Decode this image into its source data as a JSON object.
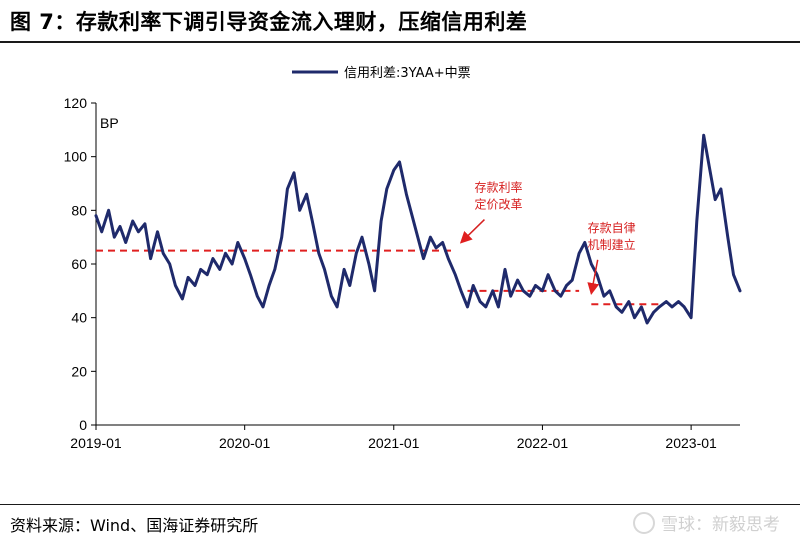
{
  "header": {
    "title": "图 7：存款利率下调引导资金流入理财，压缩信用利差"
  },
  "footer": {
    "source": "资料来源：Wind、国海证券研究所",
    "watermark": "雪球：新毅思考"
  },
  "chart_data": {
    "type": "line",
    "unit_label": "BP",
    "ylim": [
      0,
      120
    ],
    "y_ticks": [
      0,
      20,
      40,
      60,
      80,
      100,
      120
    ],
    "x_ticks": [
      "2019-01",
      "2020-01",
      "2021-01",
      "2022-01",
      "2023-01"
    ],
    "xlim": [
      "2019-01-01",
      "2023-05-01"
    ],
    "legend": {
      "position": "top-center",
      "entries": [
        "信用利差:3YAA+中票"
      ]
    },
    "series": [
      {
        "name": "信用利差:3YAA+中票",
        "color": "#1f2a6b",
        "x": [
          "2019-01-01",
          "2019-01-15",
          "2019-02-01",
          "2019-02-15",
          "2019-03-01",
          "2019-03-15",
          "2019-04-01",
          "2019-04-15",
          "2019-05-01",
          "2019-05-15",
          "2019-06-01",
          "2019-06-15",
          "2019-07-01",
          "2019-07-15",
          "2019-08-01",
          "2019-08-15",
          "2019-09-01",
          "2019-09-15",
          "2019-10-01",
          "2019-10-15",
          "2019-11-01",
          "2019-11-15",
          "2019-12-01",
          "2019-12-15",
          "2020-01-01",
          "2020-01-15",
          "2020-02-01",
          "2020-02-15",
          "2020-03-01",
          "2020-03-15",
          "2020-04-01",
          "2020-04-15",
          "2020-05-01",
          "2020-05-15",
          "2020-06-01",
          "2020-06-15",
          "2020-07-01",
          "2020-07-15",
          "2020-08-01",
          "2020-08-15",
          "2020-09-01",
          "2020-09-15",
          "2020-10-01",
          "2020-10-15",
          "2020-11-01",
          "2020-11-15",
          "2020-12-01",
          "2020-12-15",
          "2021-01-01",
          "2021-01-15",
          "2021-02-01",
          "2021-02-15",
          "2021-03-01",
          "2021-03-15",
          "2021-04-01",
          "2021-04-15",
          "2021-05-01",
          "2021-05-15",
          "2021-06-01",
          "2021-06-15",
          "2021-07-01",
          "2021-07-15",
          "2021-08-01",
          "2021-08-15",
          "2021-09-01",
          "2021-09-15",
          "2021-10-01",
          "2021-10-15",
          "2021-11-01",
          "2021-11-15",
          "2021-12-01",
          "2021-12-15",
          "2022-01-01",
          "2022-01-15",
          "2022-02-01",
          "2022-02-15",
          "2022-03-01",
          "2022-03-15",
          "2022-04-01",
          "2022-04-15",
          "2022-05-01",
          "2022-05-15",
          "2022-06-01",
          "2022-06-15",
          "2022-07-01",
          "2022-07-15",
          "2022-08-01",
          "2022-08-15",
          "2022-09-01",
          "2022-09-15",
          "2022-10-01",
          "2022-10-15",
          "2022-11-01",
          "2022-11-15",
          "2022-12-01",
          "2022-12-15",
          "2023-01-01",
          "2023-01-15",
          "2023-02-01",
          "2023-02-15",
          "2023-03-01",
          "2023-03-15",
          "2023-04-01",
          "2023-04-15",
          "2023-05-01"
        ],
        "values": [
          78,
          72,
          80,
          70,
          74,
          68,
          76,
          72,
          75,
          62,
          72,
          64,
          60,
          52,
          47,
          55,
          52,
          58,
          56,
          62,
          58,
          64,
          60,
          68,
          62,
          56,
          48,
          44,
          52,
          58,
          70,
          88,
          94,
          80,
          86,
          76,
          64,
          58,
          48,
          44,
          58,
          52,
          64,
          70,
          60,
          50,
          76,
          88,
          95,
          98,
          86,
          78,
          70,
          62,
          70,
          66,
          68,
          62,
          56,
          50,
          44,
          52,
          46,
          44,
          50,
          44,
          58,
          48,
          54,
          50,
          48,
          52,
          50,
          56,
          50,
          48,
          52,
          54,
          64,
          68,
          60,
          56,
          48,
          50,
          44,
          42,
          46,
          40,
          44,
          38,
          42,
          44,
          46,
          44,
          46,
          44,
          40,
          76,
          108,
          96,
          84,
          88,
          70,
          56,
          50
        ]
      }
    ],
    "reference_lines": [
      {
        "y": 65,
        "x_start": "2019-01-01",
        "x_end": "2021-06-01",
        "color": "#e02020",
        "style": "dashed"
      },
      {
        "y": 50,
        "x_start": "2021-07-01",
        "x_end": "2022-04-01",
        "color": "#e02020",
        "style": "dashed"
      },
      {
        "y": 45,
        "x_start": "2022-05-01",
        "x_end": "2022-10-15",
        "color": "#e02020",
        "style": "dashed"
      }
    ],
    "annotations": [
      {
        "lines": [
          "存款利率",
          "定价改革"
        ],
        "color": "#d62020",
        "at_date": "2021-09-15",
        "at_value": 87,
        "arrow_to_date": "2021-06-15",
        "arrow_to_value": 68
      },
      {
        "lines": [
          "存款自律",
          "机制建立"
        ],
        "color": "#d62020",
        "at_date": "2022-06-20",
        "at_value": 72,
        "arrow_to_date": "2022-05-01",
        "arrow_to_value": 49
      }
    ]
  }
}
